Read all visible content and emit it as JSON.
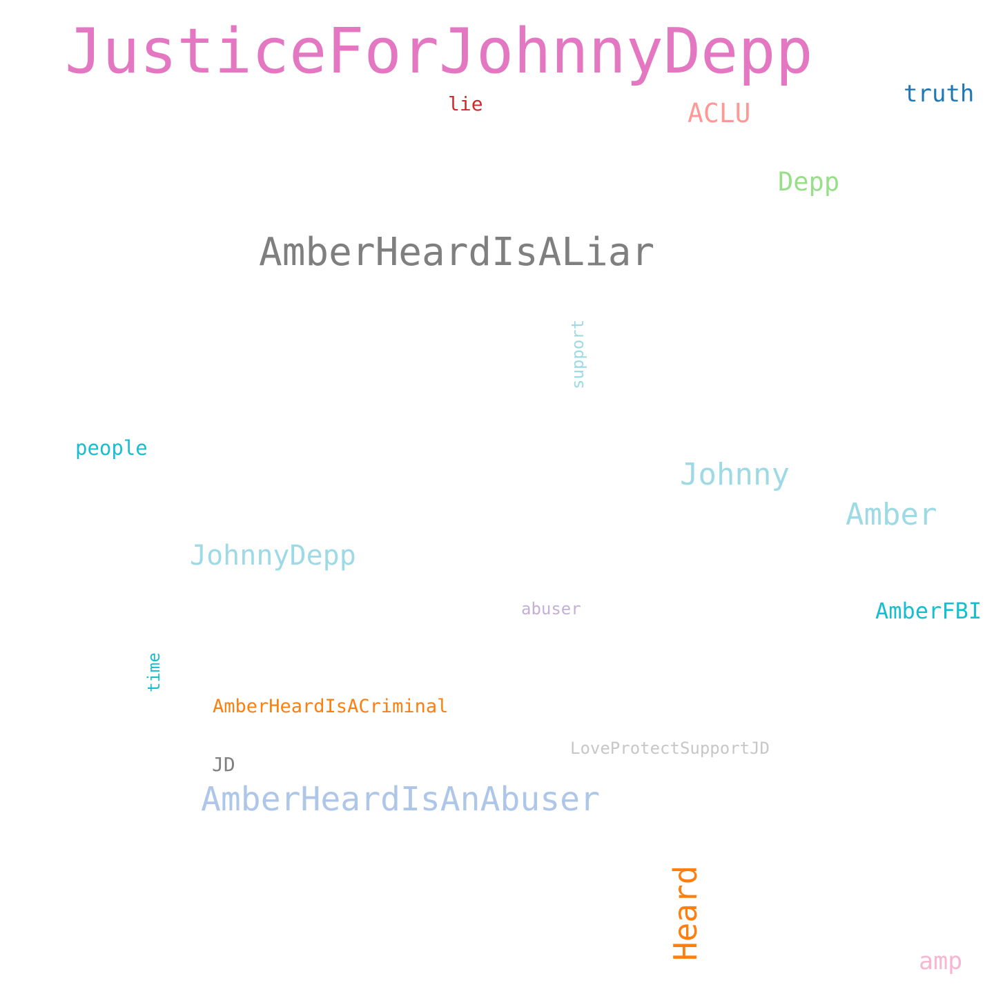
{
  "words": [
    {
      "text": "JusticeForJohnnyDepp",
      "color": "#e377c2",
      "orientation": "horizontal"
    },
    {
      "text": "truth",
      "color": "#1f77b4",
      "orientation": "horizontal"
    },
    {
      "text": "lie",
      "color": "#d62728",
      "orientation": "horizontal"
    },
    {
      "text": "ACLU",
      "color": "#ff9896",
      "orientation": "horizontal"
    },
    {
      "text": "Depp",
      "color": "#98df8a",
      "orientation": "horizontal"
    },
    {
      "text": "AmberHeardIsALiar",
      "color": "#7f7f7f",
      "orientation": "horizontal"
    },
    {
      "text": "support",
      "color": "#9edae5",
      "orientation": "vertical"
    },
    {
      "text": "people",
      "color": "#17becf",
      "orientation": "horizontal"
    },
    {
      "text": "Johnny",
      "color": "#9edae5",
      "orientation": "horizontal"
    },
    {
      "text": "Amber",
      "color": "#9edae5",
      "orientation": "horizontal"
    },
    {
      "text": "JohnnyDepp",
      "color": "#9edae5",
      "orientation": "horizontal"
    },
    {
      "text": "abuser",
      "color": "#c5b0d5",
      "orientation": "horizontal"
    },
    {
      "text": "AmberFBI",
      "color": "#17becf",
      "orientation": "horizontal"
    },
    {
      "text": "time",
      "color": "#17becf",
      "orientation": "vertical"
    },
    {
      "text": "AmberHeardIsACriminal",
      "color": "#ff7f0e",
      "orientation": "horizontal"
    },
    {
      "text": "LoveProtectSupportJD",
      "color": "#c7c7c7",
      "orientation": "horizontal"
    },
    {
      "text": "JD",
      "color": "#7f7f7f",
      "orientation": "horizontal"
    },
    {
      "text": "AmberHeardIsAnAbuser",
      "color": "#aec7e8",
      "orientation": "horizontal"
    },
    {
      "text": "Heard",
      "color": "#ff7f0e",
      "orientation": "vertical"
    },
    {
      "text": "amp",
      "color": "#f7b6d2",
      "orientation": "horizontal"
    }
  ]
}
